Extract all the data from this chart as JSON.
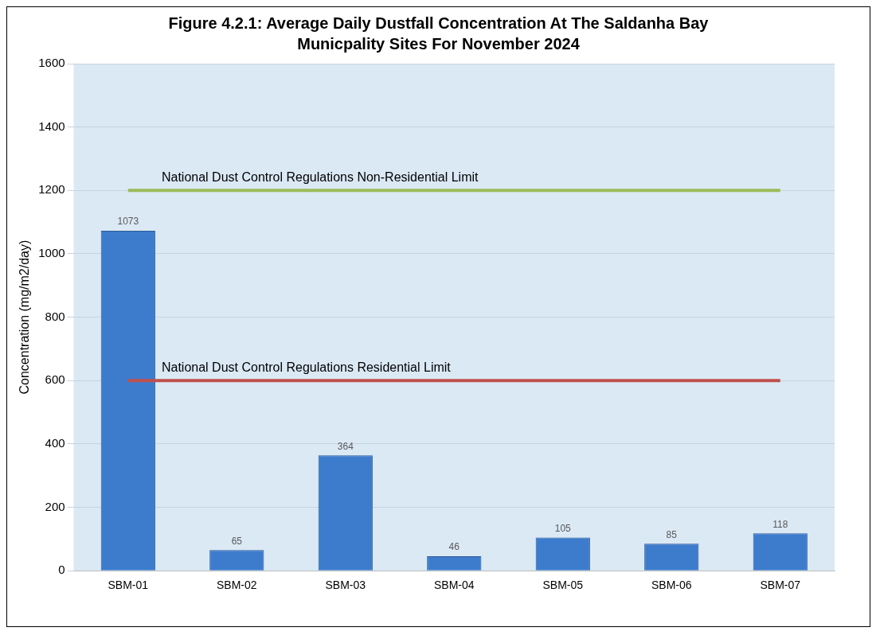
{
  "chart_data": {
    "type": "bar",
    "title": "Figure 4.2.1:  Average Daily Dustfall Concentration At The Saldanha Bay Municpality Sites For November 2024",
    "ylabel": "Concentration (mg/m2/day)",
    "categories": [
      "SBM-01",
      "SBM-02",
      "SBM-03",
      "SBM-04",
      "SBM-05",
      "SBM-06",
      "SBM-07"
    ],
    "values": [
      1073,
      65,
      364,
      46,
      105,
      85,
      118
    ],
    "color": "#3d7ccc",
    "ylim": [
      0,
      1600
    ],
    "yticks": [
      0,
      200,
      400,
      600,
      800,
      1000,
      1200,
      1400,
      1600
    ],
    "grid": "y",
    "data_labels": true,
    "legend": false,
    "ref_lines": [
      {
        "axis": "y",
        "value": 1200,
        "label": "National Dust Control Regulations Non-Residential Limit",
        "color": "#9bbb59"
      },
      {
        "axis": "y",
        "value": 600,
        "label": "National Dust Control Regulations Residential Limit",
        "color": "#c0504d"
      }
    ]
  }
}
